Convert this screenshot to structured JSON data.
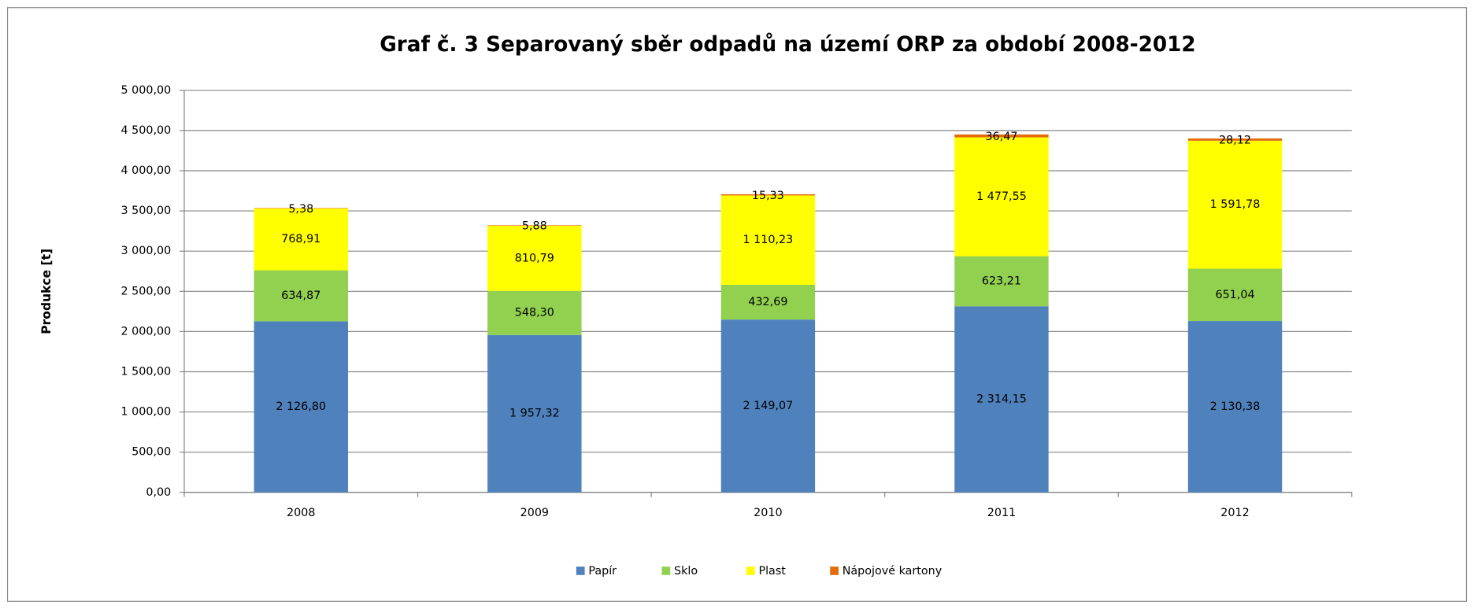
{
  "chart_data": {
    "type": "stacked_bar",
    "title": "Graf č. 3 Separovaný sběr odpadů na území ORP za období 2008-2012",
    "y_label": "Produkce [t]",
    "categories": [
      "2008",
      "2009",
      "2010",
      "2011",
      "2012"
    ],
    "series": [
      {
        "name": "Papír",
        "color": "#4f81bd",
        "values": [
          2126.8,
          1957.32,
          2149.07,
          2314.15,
          2130.38
        ],
        "value_labels": [
          "2 126,80",
          "1 957,32",
          "2 149,07",
          "2 314,15",
          "2 130,38"
        ]
      },
      {
        "name": "Sklo",
        "color": "#92d050",
        "values": [
          634.87,
          548.3,
          432.69,
          623.21,
          651.04
        ],
        "value_labels": [
          "634,87",
          "548,30",
          "432,69",
          "623,21",
          "651,04"
        ]
      },
      {
        "name": "Plast",
        "color": "#ffff00",
        "values": [
          768.91,
          810.79,
          1110.23,
          1477.55,
          1591.78
        ],
        "value_labels": [
          "768,91",
          "810,79",
          "1 110,23",
          "1 477,55",
          "1 591,78"
        ]
      },
      {
        "name": "Nápojové kartony",
        "color": "#e36c09",
        "values": [
          5.38,
          5.88,
          15.33,
          36.47,
          28.12
        ],
        "value_labels": [
          "5,38",
          "5,88",
          "15,33",
          "36,47",
          "28,12"
        ]
      }
    ],
    "ylim": [
      0,
      5000
    ],
    "yticks": [
      {
        "value": 0,
        "label": "0,00"
      },
      {
        "value": 500,
        "label": "500,00"
      },
      {
        "value": 1000,
        "label": "1 000,00"
      },
      {
        "value": 1500,
        "label": "1 500,00"
      },
      {
        "value": 2000,
        "label": "2 000,00"
      },
      {
        "value": 2500,
        "label": "2 500,00"
      },
      {
        "value": 3000,
        "label": "3 000,00"
      },
      {
        "value": 3500,
        "label": "3 500,00"
      },
      {
        "value": 4000,
        "label": "4 000,00"
      },
      {
        "value": 4500,
        "label": "4 500,00"
      },
      {
        "value": 5000,
        "label": "5 000,00"
      }
    ],
    "grid": true,
    "legend": "bottom"
  }
}
